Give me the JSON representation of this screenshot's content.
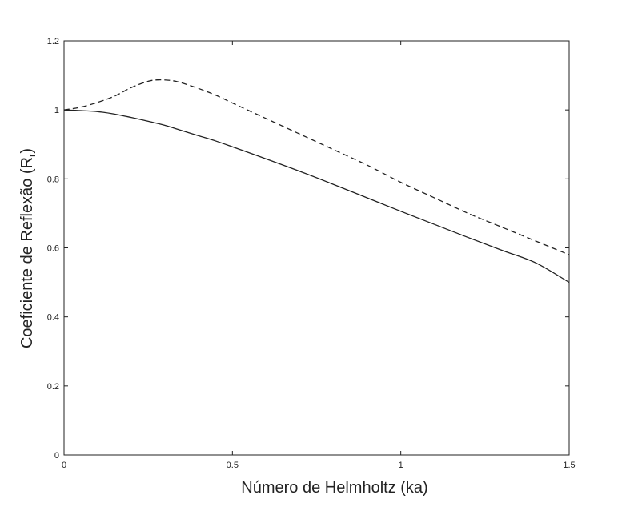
{
  "chart_data": {
    "type": "line",
    "title": "",
    "xlabel": "Número de Helmholtz (ka)",
    "ylabel_main": "Coeficiente de Reflexão (R",
    "ylabel_sub": "r",
    "ylabel_close": ")",
    "xlim": [
      0,
      1.5
    ],
    "ylim": [
      0,
      1.2
    ],
    "xticks": [
      0,
      0.5,
      1,
      1.5
    ],
    "xtick_labels": [
      "0",
      "0.5",
      "1",
      "1.5"
    ],
    "yticks": [
      0,
      0.2,
      0.4,
      0.6,
      0.8,
      1,
      1.2
    ],
    "ytick_labels": [
      "0",
      "0.2",
      "0.4",
      "0.6",
      "0.8",
      "1",
      "1.2"
    ],
    "grid": false,
    "legend": "none",
    "series": [
      {
        "style": "solid",
        "color": "#222222",
        "x": [
          0,
          0.05,
          0.1,
          0.15,
          0.2,
          0.25,
          0.3,
          0.35,
          0.4,
          0.45,
          0.5,
          0.6,
          0.7,
          0.8,
          0.9,
          1.0,
          1.1,
          1.2,
          1.3,
          1.4,
          1.5
        ],
        "y": [
          1.0,
          0.998,
          0.995,
          0.988,
          0.978,
          0.967,
          0.955,
          0.94,
          0.925,
          0.91,
          0.893,
          0.858,
          0.822,
          0.784,
          0.745,
          0.706,
          0.668,
          0.63,
          0.593,
          0.557,
          0.5
        ]
      },
      {
        "style": "dashed",
        "color": "#222222",
        "x": [
          0,
          0.05,
          0.1,
          0.15,
          0.2,
          0.25,
          0.28,
          0.32,
          0.35,
          0.4,
          0.45,
          0.5,
          0.6,
          0.7,
          0.8,
          0.9,
          1.0,
          1.1,
          1.2,
          1.3,
          1.4,
          1.5
        ],
        "y": [
          1.0,
          1.008,
          1.022,
          1.04,
          1.065,
          1.083,
          1.087,
          1.085,
          1.078,
          1.062,
          1.043,
          1.02,
          0.975,
          0.93,
          0.885,
          0.84,
          0.79,
          0.745,
          0.7,
          0.66,
          0.62,
          0.58
        ]
      }
    ]
  }
}
